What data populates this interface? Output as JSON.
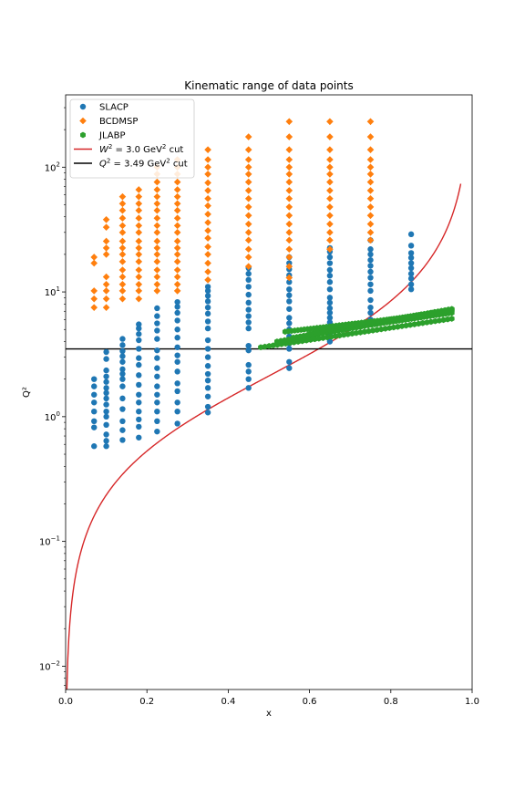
{
  "chart_data": {
    "type": "scatter",
    "title": "Kinematic range of data points",
    "xlabel": "x",
    "ylabel": "Q²",
    "xlim": [
      0.0,
      1.0
    ],
    "ylim": [
      0.0065,
      380
    ],
    "yscale": "log",
    "x_ticks": [
      "0.0",
      "0.2",
      "0.4",
      "0.6",
      "0.8",
      "1.0"
    ],
    "y_ticks": [
      {
        "base": "10",
        "exp": "−2"
      },
      {
        "base": "10",
        "exp": "−1"
      },
      {
        "base": "10",
        "exp": "0"
      },
      {
        "base": "10",
        "exp": "1"
      },
      {
        "base": "10",
        "exp": "2"
      }
    ],
    "legend_position": "top-left",
    "series": [
      {
        "name": "SLACP",
        "marker": "circle",
        "color": "#1f77b4",
        "columns": [
          {
            "x": 0.07,
            "q2": [
              0.58,
              0.82,
              0.92,
              1.1,
              1.3,
              1.5,
              1.75,
              2.0
            ]
          },
          {
            "x": 0.1,
            "q2": [
              0.58,
              0.64,
              0.72,
              0.86,
              1.0,
              1.1,
              1.25,
              1.4,
              1.55,
              1.7,
              1.9,
              2.1,
              2.35,
              2.9,
              3.3
            ]
          },
          {
            "x": 0.14,
            "q2": [
              0.65,
              0.78,
              0.92,
              1.15,
              1.4,
              1.75,
              2.0,
              2.2,
              2.4,
              2.75,
              3.05,
              3.35,
              3.75,
              4.2
            ]
          },
          {
            "x": 0.18,
            "q2": [
              0.68,
              0.83,
              0.95,
              1.1,
              1.3,
              1.5,
              1.8,
              2.15,
              2.6,
              2.95,
              3.5,
              4.1,
              4.6,
              5.1,
              5.5
            ]
          },
          {
            "x": 0.225,
            "q2": [
              0.76,
              0.92,
              1.1,
              1.3,
              1.5,
              1.75,
              2.1,
              2.45,
              2.95,
              3.4,
              4.2,
              4.9,
              5.6,
              6.4,
              7.4
            ]
          },
          {
            "x": 0.275,
            "q2": [
              0.88,
              1.1,
              1.3,
              1.6,
              1.85,
              2.3,
              2.75,
              3.1,
              3.6,
              4.3,
              5.0,
              5.9,
              6.8,
              7.6,
              8.3
            ]
          },
          {
            "x": 0.35,
            "q2": [
              1.08,
              1.2,
              1.45,
              1.7,
              1.95,
              2.2,
              2.55,
              3.0,
              3.5,
              4.1,
              5.1,
              5.8,
              6.7,
              7.5,
              8.4,
              9.3,
              10.2,
              11.0
            ]
          },
          {
            "x": 0.45,
            "q2": [
              1.7,
              2.0,
              2.3,
              2.6,
              3.4,
              3.7,
              5.1,
              5.7,
              6.4,
              7.2,
              8.2,
              9.5,
              11.0,
              12.5,
              14.0,
              15.5
            ]
          },
          {
            "x": 0.55,
            "q2": [
              2.45,
              2.75,
              3.5,
              3.85,
              4.4,
              5.0,
              5.6,
              6.2,
              7.3,
              8.4,
              9.4,
              10.5,
              12.0,
              13.6,
              15.2,
              17.0,
              19.0
            ]
          },
          {
            "x": 0.65,
            "q2": [
              4.0,
              4.6,
              5.1,
              5.7,
              6.2,
              6.8,
              7.4,
              8.2,
              9.0,
              10.5,
              12.0,
              13.5,
              15.0,
              17.0,
              19.0,
              21.0,
              22.5
            ]
          },
          {
            "x": 0.75,
            "q2": [
              6.0,
              6.8,
              7.5,
              8.6,
              10.2,
              11.5,
              13.0,
              14.5,
              16.2,
              18.0,
              20.0,
              22.0,
              26.0
            ]
          },
          {
            "x": 0.85,
            "q2": [
              10.5,
              11.5,
              12.8,
              14.0,
              15.5,
              17.0,
              18.8,
              20.5,
              23.5,
              29.0
            ]
          }
        ]
      },
      {
        "name": "BCDMSP",
        "marker": "diamond",
        "color": "#ff7f0e",
        "columns": [
          {
            "x": 0.07,
            "q2": [
              7.5,
              8.8,
              10.2,
              17.0,
              19.0
            ]
          },
          {
            "x": 0.1,
            "q2": [
              7.5,
              8.8,
              10.2,
              11.5,
              13.2,
              20.0,
              22.5,
              25.5,
              33.0,
              38.0
            ]
          },
          {
            "x": 0.14,
            "q2": [
              8.8,
              10.2,
              11.5,
              13.2,
              15.0,
              17.5,
              20.0,
              22.5,
              25.5,
              30.0,
              34.0,
              39.0,
              45.0,
              51.0,
              58.0
            ]
          },
          {
            "x": 0.18,
            "q2": [
              8.8,
              10.2,
              11.5,
              13.2,
              15.0,
              17.5,
              20.0,
              22.5,
              25.5,
              30.0,
              34.0,
              39.0,
              45.0,
              51.0,
              58.0,
              66.0
            ]
          },
          {
            "x": 0.225,
            "q2": [
              10.2,
              11.5,
              13.2,
              15.0,
              17.5,
              20.0,
              22.5,
              25.5,
              30.0,
              34.0,
              39.0,
              45.0,
              51.0,
              58.0,
              66.0,
              76.0,
              88.0,
              100.0
            ]
          },
          {
            "x": 0.275,
            "q2": [
              10.2,
              11.5,
              13.2,
              15.0,
              17.5,
              20.0,
              22.5,
              25.5,
              30.0,
              34.0,
              39.0,
              45.0,
              51.0,
              58.0,
              66.0,
              76.0,
              88.0,
              100.0,
              115.0
            ]
          },
          {
            "x": 0.35,
            "q2": [
              12.5,
              14.5,
              17.0,
              20.0,
              23.0,
              27.0,
              31.0,
              36.0,
              42.0,
              49.0,
              56.0,
              65.0,
              75.0,
              88.0,
              100.0,
              115.0,
              138.0
            ]
          },
          {
            "x": 0.45,
            "q2": [
              16.0,
              19.0,
              22.0,
              26.0,
              30.0,
              35.0,
              41.0,
              48.0,
              56.0,
              65.0,
              76.0,
              88.0,
              100.0,
              115.0,
              138.0,
              175.0
            ]
          },
          {
            "x": 0.55,
            "q2": [
              13.0,
              16.0,
              19.0,
              22.0,
              26.0,
              30.0,
              35.0,
              41.0,
              48.0,
              56.0,
              65.0,
              76.0,
              88.0,
              100.0,
              115.0,
              138.0,
              175.0,
              232.0
            ]
          },
          {
            "x": 0.65,
            "q2": [
              22.0,
              26.0,
              30.0,
              35.0,
              41.0,
              48.0,
              56.0,
              65.0,
              76.0,
              88.0,
              100.0,
              115.0,
              138.0,
              175.0,
              232.0
            ]
          },
          {
            "x": 0.75,
            "q2": [
              26.0,
              30.0,
              35.0,
              41.0,
              48.0,
              56.0,
              65.0,
              76.0,
              88.0,
              100.0,
              115.0,
              138.0,
              175.0,
              232.0
            ]
          }
        ]
      },
      {
        "name": "JLABP",
        "marker": "hexagon",
        "color": "#2ca02c",
        "bands": [
          {
            "x": [
              0.48,
              0.95
            ],
            "q2": [
              3.6,
              6.1
            ]
          },
          {
            "x": [
              0.52,
              0.95
            ],
            "q2": [
              4.0,
              7.1
            ]
          },
          {
            "x": [
              0.56,
              0.95
            ],
            "q2": [
              4.3,
              7.3
            ]
          },
          {
            "x": [
              0.6,
              0.95
            ],
            "q2": [
              4.6,
              6.8
            ]
          },
          {
            "x": [
              0.64,
              0.95
            ],
            "q2": [
              5.0,
              7.2
            ]
          },
          {
            "x": [
              0.54,
              0.9
            ],
            "q2": [
              4.8,
              6.6
            ]
          }
        ]
      }
    ],
    "lines": [
      {
        "name": "W² = 3.0 GeV² cut",
        "label_main": "W",
        "label_sup": "2",
        "label_eq": " = 3.0 GeV",
        "label_unit_sup": "2",
        "label_tail": " cut",
        "color": "#d62728",
        "W2": 3.0,
        "x_end": 0.972
      },
      {
        "name": "Q² = 3.49 GeV² cut",
        "label_main": "Q",
        "label_sup": "2",
        "label_eq": " = 3.49 GeV",
        "label_unit_sup": "2",
        "label_tail": " cut",
        "color": "#000000",
        "q2": 3.49
      }
    ]
  }
}
